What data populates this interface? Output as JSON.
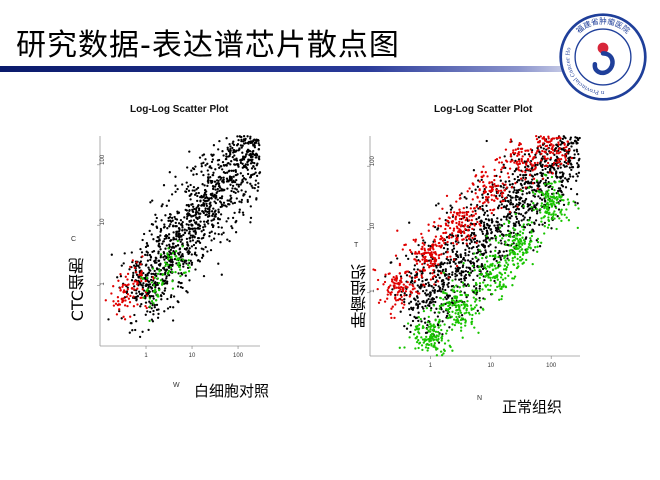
{
  "slide": {
    "title": "研究数据-表达谱芯片散点图",
    "logo": {
      "icon": "hospital-seal-icon",
      "text": "Fujian Provincial Cancer Hospital",
      "cn_text": "福建省肿瘤医院",
      "colors": {
        "ring": "#1f3f9a",
        "accent": "#d8263a"
      }
    }
  },
  "chart_data": [
    {
      "type": "scatter",
      "title": "Log-Log Scatter Plot",
      "x_code": "W",
      "y_code": "C",
      "xlabel": "白细胞对照",
      "ylabel": "CTC细胞",
      "log_scale": true,
      "x_ticks": [
        "1",
        "10",
        "100"
      ],
      "y_ticks": [
        "1",
        "10",
        "100"
      ],
      "xlim": [
        0.1,
        300
      ],
      "ylim": [
        0.1,
        300
      ],
      "series": [
        {
          "color": "#000000",
          "role": "unchanged",
          "x": [
            1,
            3,
            10,
            30,
            100,
            250
          ],
          "y": [
            1,
            3,
            10,
            30,
            100,
            250
          ]
        },
        {
          "color": "#e00000",
          "role": "higher",
          "x": [
            0.3,
            0.5,
            0.8
          ],
          "y": [
            0.6,
            0.9,
            1.5
          ]
        },
        {
          "color": "#19c400",
          "role": "lower",
          "x": [
            1.5,
            3,
            5
          ],
          "y": [
            0.8,
            1.6,
            2.8
          ]
        }
      ]
    },
    {
      "type": "scatter",
      "title": "Log-Log Scatter Plot",
      "x_code": "N",
      "y_code": "T",
      "xlabel": "正常组织",
      "ylabel": "肿瘤组织",
      "log_scale": true,
      "x_ticks": [
        "1",
        "10",
        "100"
      ],
      "y_ticks": [
        "1",
        "10",
        "100"
      ],
      "xlim": [
        0.1,
        300
      ],
      "ylim": [
        0.1,
        300
      ],
      "series": [
        {
          "color": "#000000",
          "role": "unchanged",
          "x": [
            1,
            3,
            10,
            30,
            100,
            250
          ],
          "y": [
            1,
            3,
            10,
            30,
            100,
            250
          ]
        },
        {
          "color": "#e00000",
          "role": "higher",
          "x": [
            0.3,
            1,
            3,
            10,
            30,
            100
          ],
          "y": [
            1.2,
            4,
            12,
            40,
            110,
            220
          ]
        },
        {
          "color": "#19c400",
          "role": "lower",
          "x": [
            1,
            3,
            10,
            30,
            100
          ],
          "y": [
            0.2,
            0.6,
            2,
            6,
            25
          ]
        }
      ]
    }
  ]
}
